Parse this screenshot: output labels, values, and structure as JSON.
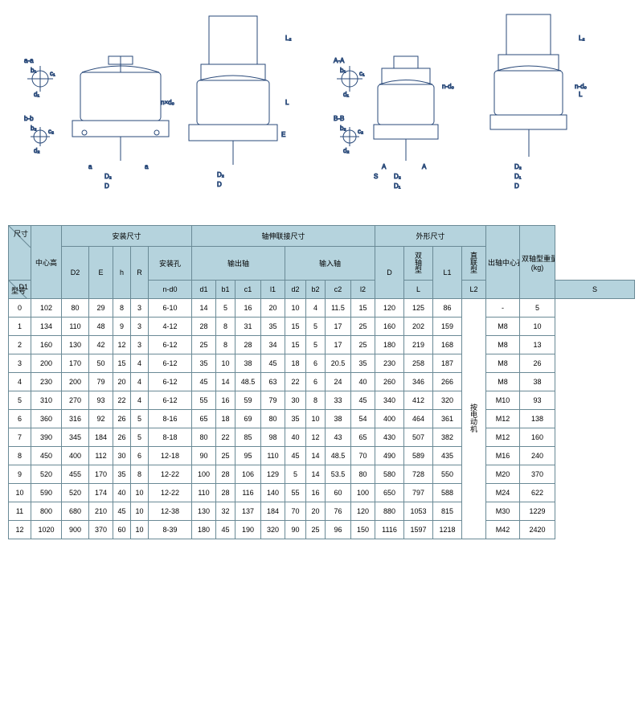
{
  "colors": {
    "header_bg": "#b5d3dd",
    "border": "#6a8a96",
    "diagram_stroke": "#2a4a7a"
  },
  "diagram_labels": {
    "aa": "a-a",
    "bb": "b-b",
    "AA": "A-A",
    "BB": "B-B",
    "b1": "b₁",
    "b2": "b₂",
    "c1": "c₁",
    "c2": "c₂",
    "d1": "d₁",
    "d2": "d₂",
    "D": "D",
    "D1": "D₁",
    "D2": "D₂",
    "nd0": "n×d₀",
    "nd1": "n-d₀",
    "a": "a",
    "A": "A",
    "h": "h",
    "R": "R",
    "E": "E",
    "L": "L",
    "L1": "L₁",
    "L2": "L₂",
    "S": "S"
  },
  "headers": {
    "dim": "尺寸",
    "model": "型号",
    "center_height": "中心高",
    "install_dim": "安装尺寸",
    "shaft_ext_dim": "轴伸联接尺寸",
    "profile_dim": "外形尺寸",
    "install_hole": "安装孔",
    "output_shaft": "输出轴",
    "input_shaft": "输入轴",
    "double_shaft": "双轴型",
    "direct": "直联型",
    "shaft_center_hole": "出轴中心孔",
    "double_shaft_weight": "双轴型重量",
    "weight_unit": "(kg)",
    "D1": "D1",
    "D2": "D2",
    "E": "E",
    "h": "h",
    "R": "R",
    "nd0": "n-d0",
    "d1": "d1",
    "b1": "b1",
    "c1": "c1",
    "l1": "l1",
    "d2": "d2",
    "b2": "b2",
    "c2": "c2",
    "l2": "l2",
    "D": "D",
    "L": "L",
    "L1": "L1",
    "L2": "L2",
    "S": "S"
  },
  "l2_merged": "按电动机",
  "rows": [
    {
      "id": "0",
      "D1": "102",
      "D2": "80",
      "E": "29",
      "h": "8",
      "R": "3",
      "nd0": "6-10",
      "d1": "14",
      "b1": "5",
      "c1": "16",
      "l1": "20",
      "d2": "10",
      "b2": "4",
      "c2": "11.5",
      "l2": "15",
      "D": "120",
      "L": "125",
      "L1": "86",
      "S": "-",
      "W": "5"
    },
    {
      "id": "1",
      "D1": "134",
      "D2": "110",
      "E": "48",
      "h": "9",
      "R": "3",
      "nd0": "4-12",
      "d1": "28",
      "b1": "8",
      "c1": "31",
      "l1": "35",
      "d2": "15",
      "b2": "5",
      "c2": "17",
      "l2": "25",
      "D": "160",
      "L": "202",
      "L1": "159",
      "S": "M8",
      "W": "10"
    },
    {
      "id": "2",
      "D1": "160",
      "D2": "130",
      "E": "42",
      "h": "12",
      "R": "3",
      "nd0": "6-12",
      "d1": "25",
      "b1": "8",
      "c1": "28",
      "l1": "34",
      "d2": "15",
      "b2": "5",
      "c2": "17",
      "l2": "25",
      "D": "180",
      "L": "219",
      "L1": "168",
      "S": "M8",
      "W": "13"
    },
    {
      "id": "3",
      "D1": "200",
      "D2": "170",
      "E": "50",
      "h": "15",
      "R": "4",
      "nd0": "6-12",
      "d1": "35",
      "b1": "10",
      "c1": "38",
      "l1": "45",
      "d2": "18",
      "b2": "6",
      "c2": "20.5",
      "l2": "35",
      "D": "230",
      "L": "258",
      "L1": "187",
      "S": "M8",
      "W": "26"
    },
    {
      "id": "4",
      "D1": "230",
      "D2": "200",
      "E": "79",
      "h": "20",
      "R": "4",
      "nd0": "6-12",
      "d1": "45",
      "b1": "14",
      "c1": "48.5",
      "l1": "63",
      "d2": "22",
      "b2": "6",
      "c2": "24",
      "l2": "40",
      "D": "260",
      "L": "346",
      "L1": "266",
      "S": "M8",
      "W": "38"
    },
    {
      "id": "5",
      "D1": "310",
      "D2": "270",
      "E": "93",
      "h": "22",
      "R": "4",
      "nd0": "6-12",
      "d1": "55",
      "b1": "16",
      "c1": "59",
      "l1": "79",
      "d2": "30",
      "b2": "8",
      "c2": "33",
      "l2": "45",
      "D": "340",
      "L": "412",
      "L1": "320",
      "S": "M10",
      "W": "93"
    },
    {
      "id": "6",
      "D1": "360",
      "D2": "316",
      "E": "92",
      "h": "26",
      "R": "5",
      "nd0": "8-16",
      "d1": "65",
      "b1": "18",
      "c1": "69",
      "l1": "80",
      "d2": "35",
      "b2": "10",
      "c2": "38",
      "l2": "54",
      "D": "400",
      "L": "464",
      "L1": "361",
      "S": "M12",
      "W": "138"
    },
    {
      "id": "7",
      "D1": "390",
      "D2": "345",
      "E": "184",
      "h": "26",
      "R": "5",
      "nd0": "8-18",
      "d1": "80",
      "b1": "22",
      "c1": "85",
      "l1": "98",
      "d2": "40",
      "b2": "12",
      "c2": "43",
      "l2": "65",
      "D": "430",
      "L": "507",
      "L1": "382",
      "S": "M12",
      "W": "160"
    },
    {
      "id": "8",
      "D1": "450",
      "D2": "400",
      "E": "112",
      "h": "30",
      "R": "6",
      "nd0": "12-18",
      "d1": "90",
      "b1": "25",
      "c1": "95",
      "l1": "110",
      "d2": "45",
      "b2": "14",
      "c2": "48.5",
      "l2": "70",
      "D": "490",
      "L": "589",
      "L1": "435",
      "S": "M16",
      "W": "240"
    },
    {
      "id": "9",
      "D1": "520",
      "D2": "455",
      "E": "170",
      "h": "35",
      "R": "8",
      "nd0": "12-22",
      "d1": "100",
      "b1": "28",
      "c1": "106",
      "l1": "129",
      "d2": "5",
      "b2": "14",
      "c2": "53.5",
      "l2": "80",
      "D": "580",
      "L": "728",
      "L1": "550",
      "S": "M20",
      "W": "370"
    },
    {
      "id": "10",
      "D1": "590",
      "D2": "520",
      "E": "174",
      "h": "40",
      "R": "10",
      "nd0": "12-22",
      "d1": "110",
      "b1": "28",
      "c1": "116",
      "l1": "140",
      "d2": "55",
      "b2": "16",
      "c2": "60",
      "l2": "100",
      "D": "650",
      "L": "797",
      "L1": "588",
      "S": "M24",
      "W": "622"
    },
    {
      "id": "11",
      "D1": "800",
      "D2": "680",
      "E": "210",
      "h": "45",
      "R": "10",
      "nd0": "12-38",
      "d1": "130",
      "b1": "32",
      "c1": "137",
      "l1": "184",
      "d2": "70",
      "b2": "20",
      "c2": "76",
      "l2": "120",
      "D": "880",
      "L": "1053",
      "L1": "815",
      "S": "M30",
      "W": "1229"
    },
    {
      "id": "12",
      "D1": "1020",
      "D2": "900",
      "E": "370",
      "h": "60",
      "R": "10",
      "nd0": "8-39",
      "d1": "180",
      "b1": "45",
      "c1": "190",
      "l1": "320",
      "d2": "90",
      "b2": "25",
      "c2": "96",
      "l2": "150",
      "D": "1116",
      "L": "1597",
      "L1": "1218",
      "S": "M42",
      "W": "2420"
    }
  ]
}
